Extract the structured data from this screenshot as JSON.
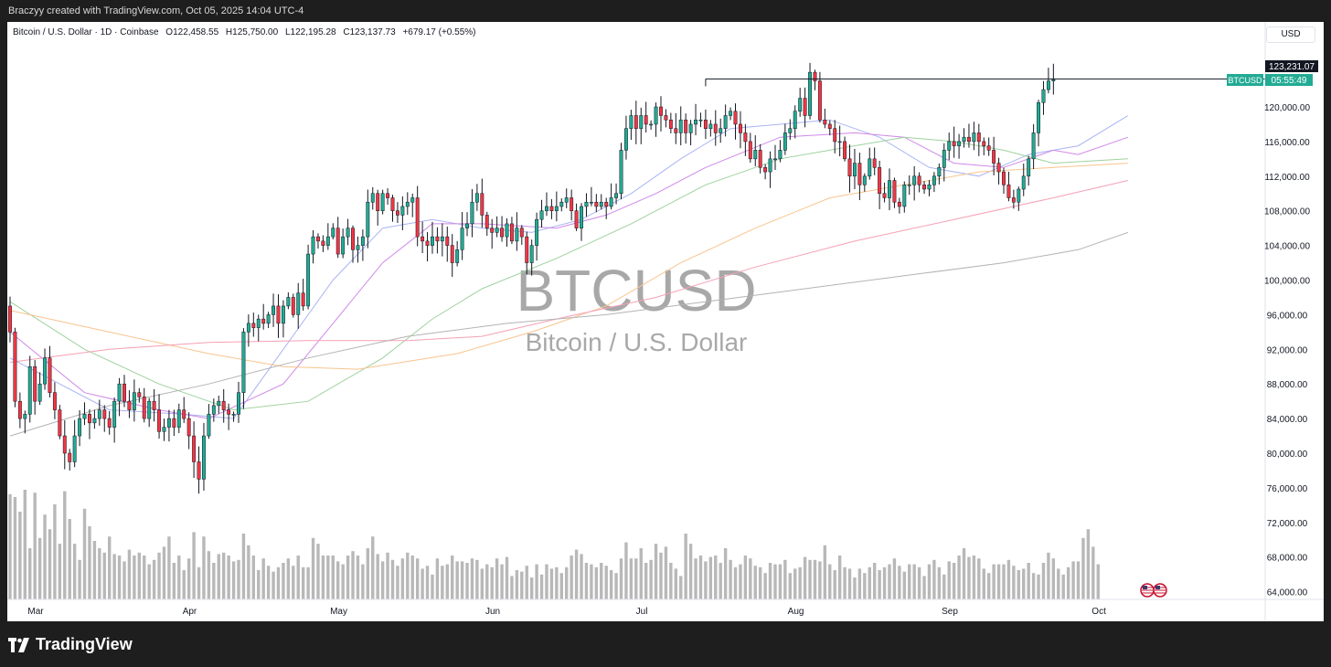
{
  "header": {
    "credit": "Braczyy created with TradingView.com, Oct 05, 2025 14:04 UTC-4"
  },
  "legend": {
    "symbol": "Bitcoin / U.S. Dollar · 1D · Coinbase",
    "open": "O122,458.55",
    "high": "H125,750.00",
    "low": "L122,195.28",
    "close": "C123,137.73",
    "change": "+679.17 (+0.55%)"
  },
  "currency_button": "USD",
  "watermark": {
    "ticker": "BTCUSD",
    "name": "Bitcoin / U.S. Dollar"
  },
  "price_labels": {
    "level_value": "123,231.07",
    "ticker_tag": "BTCUSD",
    "countdown": "05:55:49"
  },
  "footer": {
    "brand": "TradingView"
  },
  "colors": {
    "up": "#22ab94",
    "down": "#f23645",
    "volume": "#b8b8b8",
    "ma_blue": "#aab4f3",
    "ma_purple": "#cf88e8",
    "ma_green": "#9ed29e",
    "ma_orange": "#f8c48e",
    "ma_pink": "#f5a0b4",
    "ma_gray": "#b3b3b3",
    "tag_green": "#22ab94"
  },
  "chart_data": {
    "type": "candlestick",
    "y_ticks": [
      "120,000.00",
      "116,000.00",
      "112,000.00",
      "108,000.00",
      "104,000.00",
      "100,000.00",
      "96,000.00",
      "92,000.00",
      "88,000.00",
      "84,000.00",
      "80,000.00",
      "76,000.00",
      "72,000.00",
      "68,000.00",
      "64,000.00"
    ],
    "ylim": [
      62000,
      125000
    ],
    "x_labels": [
      {
        "label": "Mar",
        "day": 0
      },
      {
        "label": "Apr",
        "day": 31
      },
      {
        "label": "May",
        "day": 61
      },
      {
        "label": "Jun",
        "day": 92
      },
      {
        "label": "Jul",
        "day": 122
      },
      {
        "label": "Aug",
        "day": 153
      },
      {
        "label": "Sep",
        "day": 184
      },
      {
        "label": "Oct",
        "day": 214
      }
    ],
    "horizontal_level": 123231.07,
    "horizontal_level_start_day": 140,
    "closes": [
      94000,
      86000,
      84000,
      84500,
      90000,
      86000,
      88000,
      91000,
      87000,
      85000,
      82000,
      80000,
      79000,
      82000,
      84000,
      84500,
      83500,
      84000,
      85000,
      84000,
      83000,
      86000,
      88000,
      86000,
      85000,
      87000,
      86500,
      84000,
      86000,
      85000,
      82500,
      83000,
      84000,
      83000,
      85000,
      84000,
      82000,
      79000,
      77000,
      82000,
      84500,
      85500,
      86000,
      85000,
      84500,
      84500,
      87000,
      94000,
      95000,
      94500,
      95500,
      95000,
      96000,
      97000,
      95000,
      97000,
      98000,
      96000,
      98500,
      97000,
      103000,
      105000,
      104500,
      104000,
      105000,
      106000,
      103000,
      105000,
      106000,
      103500,
      104000,
      105000,
      109000,
      110000,
      108000,
      110000,
      109500,
      108000,
      107500,
      108500,
      109000,
      109500,
      105000,
      104500,
      104000,
      105000,
      104500,
      105000,
      104000,
      102000,
      103500,
      106000,
      106500,
      109000,
      110000,
      107500,
      106000,
      105500,
      106000,
      105000,
      106500,
      104500,
      106000,
      105000,
      102000,
      104000,
      107000,
      108000,
      108500,
      108000,
      108500,
      109000,
      109500,
      108000,
      106000,
      108500,
      109000,
      109000,
      108500,
      109000,
      108500,
      109500,
      110000,
      115000,
      117500,
      119000,
      117500,
      119000,
      118000,
      118000,
      120000,
      119000,
      118500,
      117500,
      117000,
      118500,
      117000,
      118000,
      118500,
      118500,
      117500,
      118000,
      117000,
      117500,
      119000,
      119500,
      118000,
      117000,
      116000,
      114000,
      115000,
      113000,
      112500,
      114000,
      114000,
      115000,
      117000,
      117500,
      119500,
      121000,
      119000,
      124000,
      123000,
      118500,
      118000,
      117500,
      116000,
      116000,
      114000,
      112000,
      113500,
      111000,
      112000,
      114000,
      113000,
      110000,
      109500,
      111500,
      109000,
      108500,
      111000,
      111000,
      112000,
      111000,
      110500,
      111000,
      112000,
      113000,
      115000,
      116000,
      115500,
      116000,
      116500,
      116000,
      117000,
      116000,
      115500,
      115000,
      113500,
      112500,
      111000,
      109500,
      109000,
      110500,
      112000,
      114000,
      117000,
      120500,
      122000,
      123000,
      123138
    ],
    "volumes": [
      0.72,
      0.7,
      0.6,
      0.75,
      0.35,
      0.73,
      0.42,
      0.58,
      0.48,
      0.65,
      0.38,
      0.74,
      0.55,
      0.38,
      0.27,
      0.62,
      0.5,
      0.4,
      0.35,
      0.32,
      0.43,
      0.31,
      0.3,
      0.26,
      0.34,
      0.3,
      0.32,
      0.3,
      0.24,
      0.27,
      0.32,
      0.36,
      0.43,
      0.25,
      0.3,
      0.2,
      0.28,
      0.46,
      0.22,
      0.43,
      0.33,
      0.25,
      0.31,
      0.32,
      0.3,
      0.26,
      0.27,
      0.45,
      0.37,
      0.3,
      0.2,
      0.28,
      0.23,
      0.19,
      0.22,
      0.25,
      0.28,
      0.23,
      0.3,
      0.22,
      0.22,
      0.42,
      0.38,
      0.3,
      0.3,
      0.3,
      0.26,
      0.24,
      0.3,
      0.33,
      0.3,
      0.24,
      0.35,
      0.43,
      0.31,
      0.26,
      0.32,
      0.27,
      0.23,
      0.28,
      0.32,
      0.3,
      0.28,
      0.21,
      0.23,
      0.17,
      0.28,
      0.23,
      0.24,
      0.3,
      0.26,
      0.26,
      0.25,
      0.28,
      0.27,
      0.21,
      0.24,
      0.22,
      0.28,
      0.24,
      0.29,
      0.16,
      0.2,
      0.19,
      0.23,
      0.15,
      0.24,
      0.17,
      0.24,
      0.21,
      0.22,
      0.18,
      0.22,
      0.3,
      0.34,
      0.31,
      0.25,
      0.24,
      0.22,
      0.25,
      0.23,
      0.2,
      0.18,
      0.28,
      0.39,
      0.28,
      0.28,
      0.35,
      0.25,
      0.27,
      0.38,
      0.32,
      0.36,
      0.25,
      0.21,
      0.16,
      0.45,
      0.38,
      0.28,
      0.3,
      0.26,
      0.29,
      0.3,
      0.25,
      0.35,
      0.27,
      0.22,
      0.24,
      0.3,
      0.28,
      0.23,
      0.22,
      0.18,
      0.25,
      0.24,
      0.24,
      0.27,
      0.18,
      0.21,
      0.22,
      0.29,
      0.27,
      0.27,
      0.26,
      0.37,
      0.24,
      0.2,
      0.3,
      0.22,
      0.21,
      0.15,
      0.21,
      0.18,
      0.22,
      0.25,
      0.2,
      0.22,
      0.24,
      0.28,
      0.23,
      0.19,
      0.24,
      0.24,
      0.22,
      0.16,
      0.24,
      0.27,
      0.22,
      0.17,
      0.26,
      0.25,
      0.3,
      0.35,
      0.29,
      0.3,
      0.28,
      0.21,
      0.18,
      0.24,
      0.24,
      0.24,
      0.27,
      0.23,
      0.2,
      0.21,
      0.25,
      0.18,
      0.17,
      0.25,
      0.32,
      0.28,
      0.21,
      0.17,
      0.22,
      0.26,
      0.26,
      0.42,
      0.48,
      0.36,
      0.24
    ],
    "ma_series": [
      {
        "color_key": "ma_blue",
        "points": [
          [
            0,
            91000
          ],
          [
            20,
            85000
          ],
          [
            35,
            84500
          ],
          [
            45,
            84000
          ],
          [
            55,
            92000
          ],
          [
            65,
            100000
          ],
          [
            75,
            106000
          ],
          [
            85,
            107000
          ],
          [
            95,
            106000
          ],
          [
            105,
            105500
          ],
          [
            115,
            107000
          ],
          [
            125,
            110000
          ],
          [
            135,
            114000
          ],
          [
            145,
            117500
          ],
          [
            155,
            118000
          ],
          [
            165,
            118500
          ],
          [
            175,
            116500
          ],
          [
            185,
            113000
          ],
          [
            195,
            112000
          ],
          [
            205,
            114500
          ],
          [
            215,
            115500
          ],
          [
            225,
            119000
          ]
        ]
      },
      {
        "color_key": "ma_purple",
        "points": [
          [
            0,
            94000
          ],
          [
            15,
            87000
          ],
          [
            30,
            85000
          ],
          [
            40,
            84000
          ],
          [
            55,
            88000
          ],
          [
            65,
            95000
          ],
          [
            75,
            102000
          ],
          [
            85,
            106500
          ],
          [
            95,
            106500
          ],
          [
            110,
            106000
          ],
          [
            120,
            107500
          ],
          [
            130,
            110000
          ],
          [
            140,
            113000
          ],
          [
            155,
            116500
          ],
          [
            170,
            117000
          ],
          [
            180,
            116500
          ],
          [
            190,
            113500
          ],
          [
            200,
            113000
          ],
          [
            210,
            115000
          ],
          [
            215,
            114500
          ],
          [
            225,
            116500
          ]
        ]
      },
      {
        "color_key": "ma_green",
        "points": [
          [
            0,
            97500
          ],
          [
            15,
            92000
          ],
          [
            30,
            88000
          ],
          [
            45,
            85000
          ],
          [
            60,
            86000
          ],
          [
            75,
            91000
          ],
          [
            85,
            95500
          ],
          [
            95,
            99000
          ],
          [
            110,
            102500
          ],
          [
            125,
            106500
          ],
          [
            140,
            111000
          ],
          [
            155,
            114000
          ],
          [
            170,
            115500
          ],
          [
            180,
            116500
          ],
          [
            190,
            116000
          ],
          [
            200,
            115000
          ],
          [
            210,
            113500
          ],
          [
            225,
            114000
          ]
        ]
      },
      {
        "color_key": "ma_orange",
        "points": [
          [
            0,
            96500
          ],
          [
            20,
            94000
          ],
          [
            40,
            91500
          ],
          [
            55,
            90000
          ],
          [
            70,
            89700
          ],
          [
            90,
            91500
          ],
          [
            105,
            94000
          ],
          [
            120,
            97000
          ],
          [
            135,
            102000
          ],
          [
            150,
            106000
          ],
          [
            165,
            109500
          ],
          [
            180,
            111000
          ],
          [
            195,
            112500
          ],
          [
            210,
            113000
          ],
          [
            225,
            113500
          ]
        ]
      },
      {
        "color_key": "ma_pink",
        "points": [
          [
            0,
            90500
          ],
          [
            20,
            92000
          ],
          [
            40,
            92800
          ],
          [
            60,
            93000
          ],
          [
            80,
            93000
          ],
          [
            95,
            93500
          ],
          [
            110,
            95500
          ],
          [
            130,
            98000
          ],
          [
            150,
            101500
          ],
          [
            170,
            104500
          ],
          [
            190,
            107000
          ],
          [
            210,
            109500
          ],
          [
            225,
            111500
          ]
        ]
      },
      {
        "color_key": "ma_gray",
        "points": [
          [
            0,
            82000
          ],
          [
            20,
            85500
          ],
          [
            40,
            88000
          ],
          [
            60,
            91000
          ],
          [
            80,
            93500
          ],
          [
            100,
            95000
          ],
          [
            120,
            96000
          ],
          [
            140,
            97500
          ],
          [
            160,
            99000
          ],
          [
            180,
            100500
          ],
          [
            200,
            102000
          ],
          [
            215,
            103500
          ],
          [
            225,
            105500
          ]
        ]
      }
    ]
  }
}
